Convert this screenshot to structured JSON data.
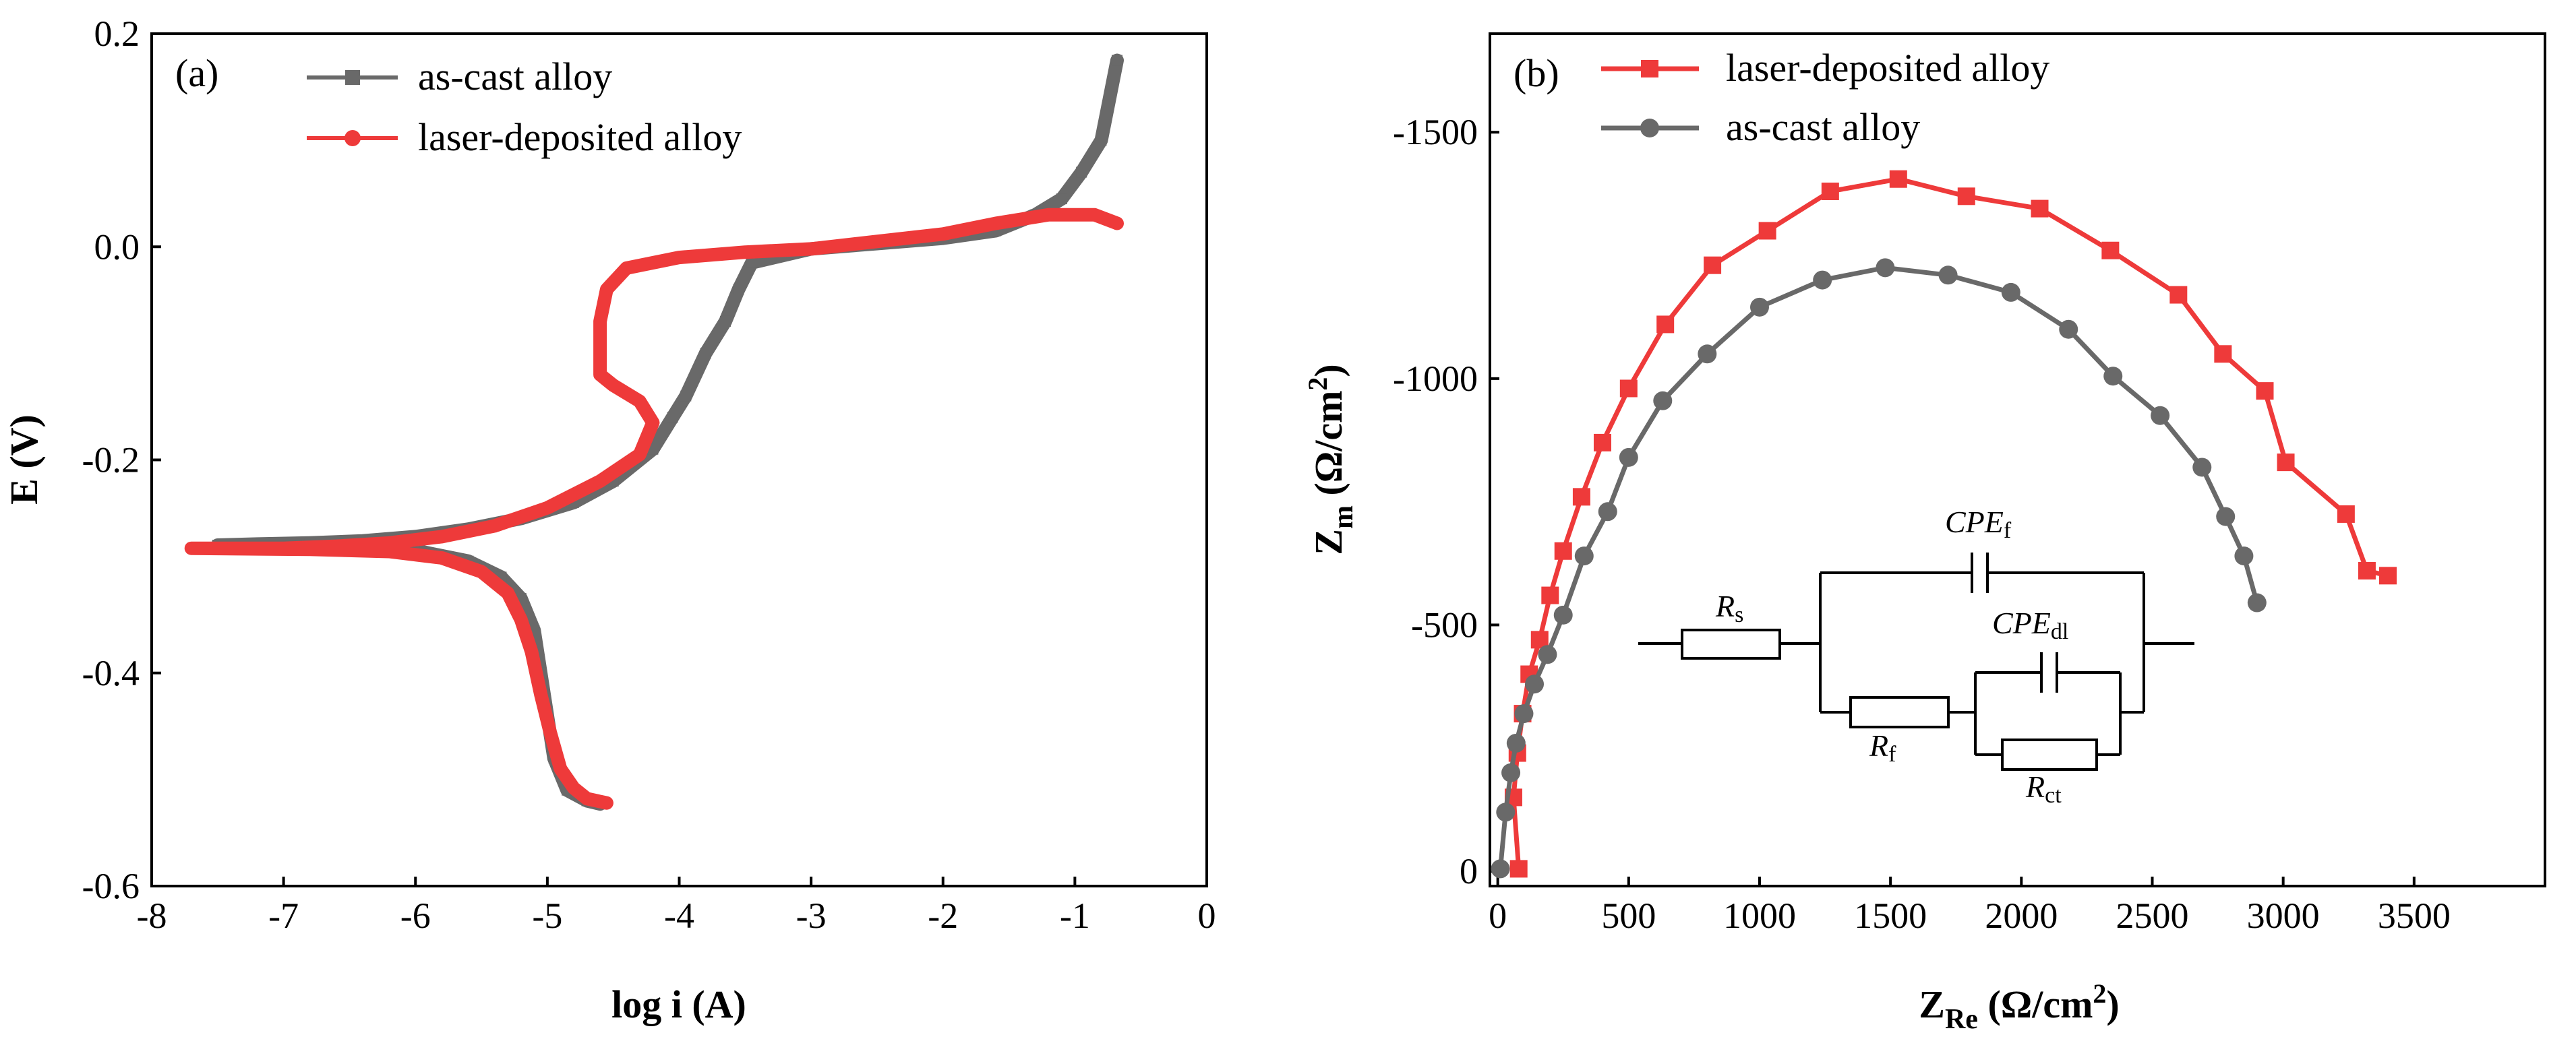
{
  "colors": {
    "as_cast": "#696969",
    "laser": "#ee3a3a",
    "axis": "#000000",
    "circuit": "#000000"
  },
  "chart_data": [
    {
      "type": "line",
      "panel_label": "(a)",
      "xlabel": "log i (A)",
      "ylabel": "E (V)",
      "xlim": [
        -8,
        0
      ],
      "ylim": [
        -0.6,
        0.2
      ],
      "xticks": [
        "-8",
        "-7",
        "-6",
        "-5",
        "-4",
        "-3",
        "-2",
        "-1",
        "0"
      ],
      "yticks": [
        "-0.6",
        "-0.4",
        "-0.2",
        "0.0",
        "0.2"
      ],
      "legend_position": "top-center",
      "series": [
        {
          "name": "as-cast alloy",
          "marker": "square",
          "color": "#696969",
          "x": [
            -0.68,
            -0.8,
            -0.95,
            -1.1,
            -1.3,
            -1.6,
            -2.0,
            -2.5,
            -3.0,
            -3.45,
            -3.55,
            -3.65,
            -3.8,
            -3.95,
            -4.05,
            -4.2,
            -4.5,
            -4.8,
            -5.2,
            -5.6,
            -6.0,
            -6.4,
            -6.8,
            -7.2,
            -7.5,
            -6.5,
            -6.0,
            -5.6,
            -5.35,
            -5.2,
            -5.1,
            -5.05,
            -5.0,
            -4.95,
            -4.85,
            -4.7,
            -4.6
          ],
          "y": [
            0.175,
            0.1,
            0.07,
            0.045,
            0.03,
            0.015,
            0.008,
            0.003,
            -0.002,
            -0.015,
            -0.04,
            -0.07,
            -0.1,
            -0.14,
            -0.16,
            -0.19,
            -0.22,
            -0.24,
            -0.255,
            -0.265,
            -0.272,
            -0.276,
            -0.278,
            -0.279,
            -0.28,
            -0.282,
            -0.285,
            -0.295,
            -0.31,
            -0.33,
            -0.36,
            -0.4,
            -0.44,
            -0.48,
            -0.51,
            -0.52,
            -0.523
          ]
        },
        {
          "name": "laser-deposited alloy",
          "marker": "circle",
          "color": "#ee3a3a",
          "x": [
            -0.68,
            -0.85,
            -1.2,
            -1.6,
            -2.0,
            -2.5,
            -3.0,
            -3.5,
            -4.0,
            -4.4,
            -4.55,
            -4.6,
            -4.6,
            -4.5,
            -4.3,
            -4.2,
            -4.3,
            -4.6,
            -5.0,
            -5.4,
            -5.8,
            -6.2,
            -6.6,
            -7.0,
            -7.4,
            -7.7,
            -6.8,
            -6.2,
            -5.8,
            -5.5,
            -5.3,
            -5.2,
            -5.12,
            -5.05,
            -4.98,
            -4.9,
            -4.8,
            -4.7,
            -4.55
          ],
          "y": [
            0.022,
            0.03,
            0.03,
            0.022,
            0.012,
            0.005,
            -0.002,
            -0.005,
            -0.01,
            -0.02,
            -0.04,
            -0.07,
            -0.12,
            -0.13,
            -0.145,
            -0.165,
            -0.195,
            -0.22,
            -0.245,
            -0.262,
            -0.272,
            -0.278,
            -0.281,
            -0.283,
            -0.283,
            -0.283,
            -0.284,
            -0.286,
            -0.292,
            -0.305,
            -0.325,
            -0.35,
            -0.38,
            -0.42,
            -0.455,
            -0.49,
            -0.508,
            -0.518,
            -0.522
          ]
        }
      ]
    },
    {
      "type": "line",
      "panel_label": "(b)",
      "xlabel_main": "Z",
      "xlabel_sub": "Re",
      "xlabel_units": " (Ω/cm",
      "xlabel_exp": "2",
      "xlabel_close": ")",
      "ylabel_main": "Z",
      "ylabel_sub": "m",
      "ylabel_units": " (Ω/cm",
      "ylabel_exp": "2",
      "ylabel_close": ")",
      "xlim": [
        -30,
        4000
      ],
      "ylim": [
        30,
        -1700
      ],
      "xticks": [
        "0",
        "500",
        "1000",
        "1500",
        "2000",
        "2500",
        "3000",
        "3500"
      ],
      "yticks": [
        "0",
        "-500",
        "-1000",
        "-1500"
      ],
      "legend_position": "top-left",
      "series": [
        {
          "name": "laser-deposited alloy",
          "marker": "square",
          "color": "#ee3a3a",
          "x": [
            80,
            60,
            75,
            95,
            120,
            160,
            200,
            250,
            320,
            400,
            500,
            640,
            820,
            1030,
            1270,
            1530,
            1790,
            2070,
            2340,
            2600,
            2770,
            2930,
            3010,
            3240,
            3320,
            3400
          ],
          "y": [
            -5,
            -150,
            -240,
            -320,
            -400,
            -470,
            -560,
            -650,
            -760,
            -870,
            -980,
            -1110,
            -1230,
            -1300,
            -1380,
            -1405,
            -1370,
            -1345,
            -1260,
            -1170,
            -1050,
            -975,
            -830,
            -725,
            -610,
            -600
          ]
        },
        {
          "name": "as-cast alloy",
          "marker": "circle",
          "color": "#696969",
          "x": [
            10,
            30,
            50,
            70,
            100,
            140,
            190,
            250,
            330,
            420,
            500,
            630,
            800,
            1000,
            1240,
            1480,
            1720,
            1960,
            2180,
            2350,
            2530,
            2690,
            2780,
            2850,
            2900
          ],
          "y": [
            -5,
            -120,
            -200,
            -260,
            -320,
            -380,
            -440,
            -520,
            -640,
            -730,
            -840,
            -955,
            -1050,
            -1145,
            -1200,
            -1225,
            -1210,
            -1175,
            -1100,
            -1005,
            -925,
            -820,
            -720,
            -640,
            -545
          ]
        }
      ],
      "circuit": {
        "rs_main": "R",
        "rs_sub": "s",
        "rf_main": "R",
        "rf_sub": "f",
        "rct_main": "R",
        "rct_sub": "ct",
        "cpef_main": "CPE",
        "cpef_sub": "f",
        "cpedl_main": "CPE",
        "cpedl_sub": "dl"
      }
    }
  ]
}
